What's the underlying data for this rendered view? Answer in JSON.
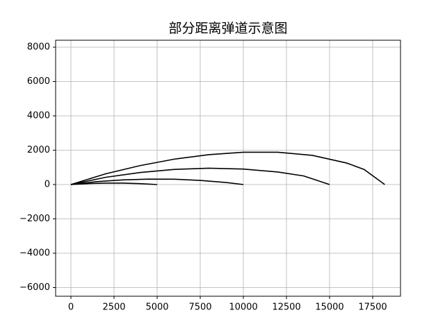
{
  "chart_data": {
    "type": "line",
    "title": "部分距离弹道示意图",
    "series": [
      {
        "color": "#000000",
        "x": [
          0,
          1000,
          2000,
          3000,
          4000,
          5000
        ],
        "values": [
          0,
          55,
          85,
          85,
          55,
          0
        ]
      },
      {
        "color": "#000000",
        "x": [
          0,
          1500,
          3000,
          4500,
          6000,
          7500,
          9000,
          10000
        ],
        "values": [
          0,
          170,
          270,
          315,
          310,
          240,
          120,
          0
        ]
      },
      {
        "color": "#000000",
        "x": [
          0,
          2000,
          4000,
          6000,
          8000,
          10000,
          12000,
          13500,
          15000
        ],
        "values": [
          0,
          420,
          700,
          880,
          950,
          900,
          730,
          500,
          0
        ]
      },
      {
        "color": "#000000",
        "x": [
          0,
          2000,
          4000,
          6000,
          8000,
          10000,
          12000,
          14000,
          16000,
          17000,
          18200
        ],
        "values": [
          0,
          620,
          1100,
          1480,
          1740,
          1880,
          1880,
          1700,
          1250,
          880,
          0
        ]
      }
    ],
    "xlim": [
      -887,
      19113
    ],
    "xticks": [
      0,
      2500,
      5000,
      7500,
      10000,
      12500,
      15000,
      17500
    ],
    "ylim": [
      -6505,
      8404
    ],
    "yticks": [
      {
        "value": -6000,
        "label": "−6000"
      },
      {
        "value": -4000,
        "label": "−4000"
      },
      {
        "value": -2000,
        "label": "−2000"
      },
      0,
      2000,
      4000,
      6000,
      8000
    ],
    "grid": true
  }
}
